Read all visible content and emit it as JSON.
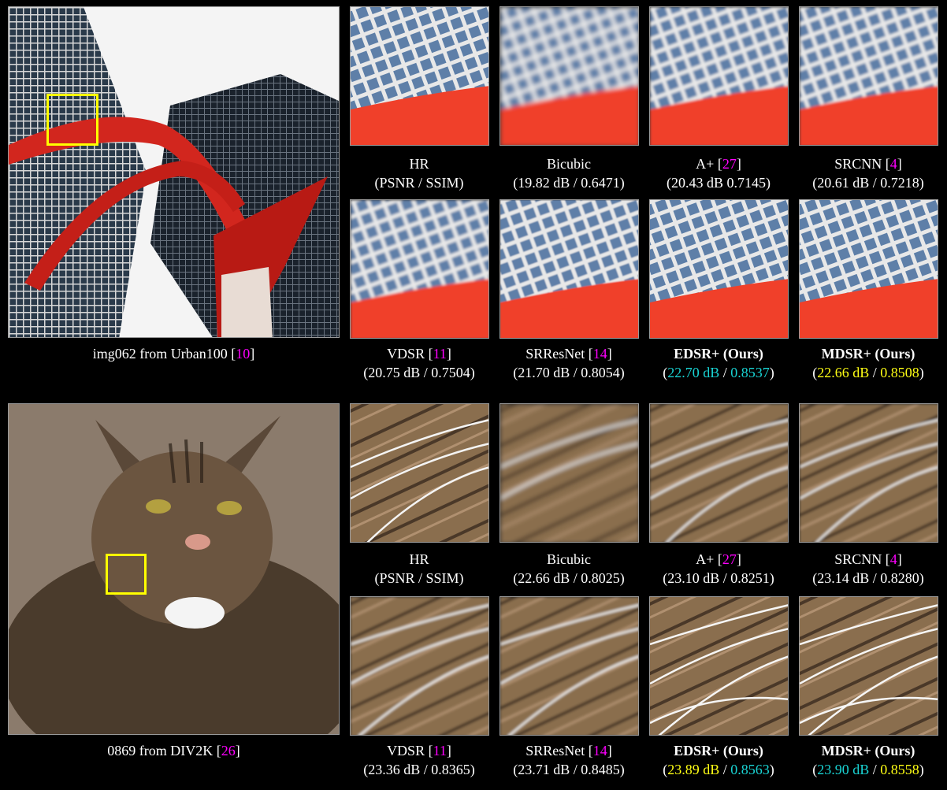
{
  "rows": [
    {
      "main_caption": {
        "text": "img062 from Urban100 [",
        "ref": "10",
        "close": "]"
      },
      "row1": [
        {
          "name": "HR",
          "line2": "(PSNR / SSIM)",
          "ref": ""
        },
        {
          "name": "Bicubic",
          "line2": "(19.82 dB / 0.6471)",
          "ref": ""
        },
        {
          "name": "A+ ",
          "line2": "(20.43 dB  0.7145)",
          "ref": "27"
        },
        {
          "name": "SRCNN ",
          "line2": "(20.61 dB / 0.7218)",
          "ref": "4"
        }
      ],
      "row2": [
        {
          "name": "VDSR ",
          "line2": "(20.75 dB / 0.7504)",
          "ref": "11"
        },
        {
          "name": "SRResNet ",
          "line2": "(21.70 dB / 0.8054)",
          "ref": "14"
        },
        {
          "name": "EDSR+ (Ours)",
          "psnr": "22.70 dB",
          "ssim": "0.8537",
          "psnr_color": "cyan",
          "ssim_color": "cyan"
        },
        {
          "name": "MDSR+ (Ours)",
          "psnr": "22.66 dB",
          "ssim": "0.8508",
          "psnr_color": "yellow",
          "ssim_color": "yellow"
        }
      ]
    },
    {
      "main_caption": {
        "text": "0869 from DIV2K [",
        "ref": "26",
        "close": "]"
      },
      "row1": [
        {
          "name": "HR",
          "line2": "(PSNR / SSIM)",
          "ref": ""
        },
        {
          "name": "Bicubic",
          "line2": "(22.66 dB / 0.8025)",
          "ref": ""
        },
        {
          "name": "A+ ",
          "line2": "(23.10 dB / 0.8251)",
          "ref": "27"
        },
        {
          "name": "SRCNN ",
          "line2": "(23.14 dB / 0.8280)",
          "ref": "4"
        }
      ],
      "row2": [
        {
          "name": "VDSR ",
          "line2": "(23.36 dB / 0.8365)",
          "ref": "11"
        },
        {
          "name": "SRResNet ",
          "line2": "(23.71 dB / 0.8485)",
          "ref": "14"
        },
        {
          "name": "EDSR+ (Ours)",
          "psnr": "23.89 dB",
          "ssim": "0.8563",
          "psnr_color": "yellow",
          "ssim_color": "cyan"
        },
        {
          "name": "MDSR+ (Ours)",
          "psnr": "23.90 dB",
          "ssim": "0.8558",
          "psnr_color": "cyan",
          "ssim_color": "yellow"
        }
      ]
    }
  ],
  "colors": {
    "ref": "#ff00ff",
    "cyan": "#19d3d3",
    "yellow": "#ffff14",
    "zoom_box": "#ffff00"
  }
}
